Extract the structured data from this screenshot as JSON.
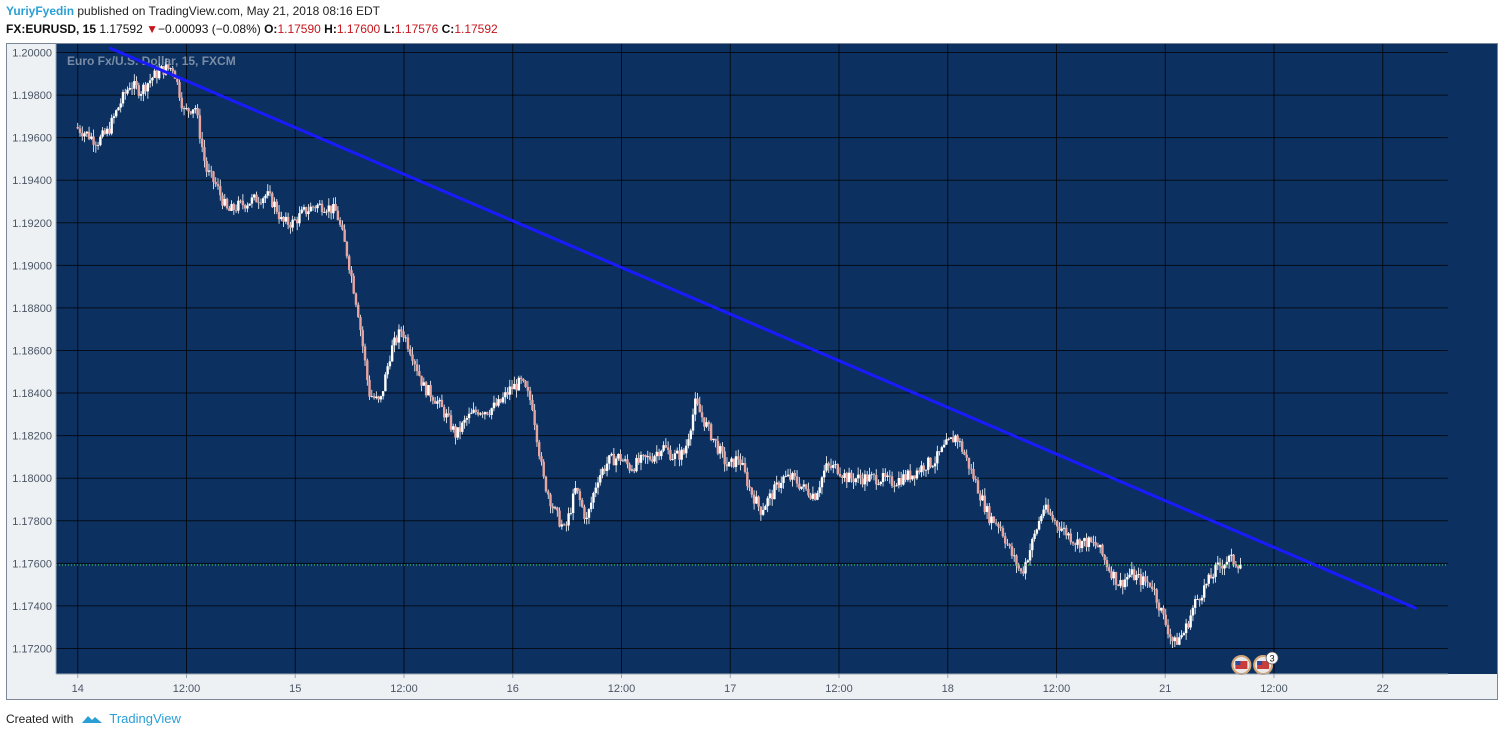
{
  "header": {
    "author": "YuriyFyedin",
    "published_text": "published on TradingView.com, May 21, 2018 08:16 EDT",
    "symbol": "FX:EURUSD, 15",
    "last": "1.17592",
    "down_arrow": "▼",
    "change": "−0.00093 (−0.08%)",
    "open_label": "O:",
    "open": "1.17590",
    "high_label": "H:",
    "high": "1.17600",
    "low_label": "L:",
    "low": "1.17576",
    "close_label": "C:",
    "close": "1.17592"
  },
  "footer": {
    "created_with": "Created with",
    "brand": "TradingView"
  },
  "colors": {
    "plot_bg": "#0c3160",
    "grid": "#000000",
    "trendline": "#1a1aff",
    "hline": "#44dd44",
    "candle_up": "#ffffff",
    "candle_down": "#e8a5a0",
    "wick": "#ffffff"
  },
  "chart_data": {
    "type": "candlestick",
    "title": "Euro Fx/U.S. Dollar, 15, FXCM",
    "y_ticks": [
      "1.20000",
      "1.19800",
      "1.19600",
      "1.19400",
      "1.19200",
      "1.19000",
      "1.18800",
      "1.18600",
      "1.18400",
      "1.18200",
      "1.18000",
      "1.17800",
      "1.17600",
      "1.17400",
      "1.17200"
    ],
    "y_tick_values": [
      1.2,
      1.198,
      1.196,
      1.194,
      1.192,
      1.19,
      1.188,
      1.186,
      1.184,
      1.182,
      1.18,
      1.178,
      1.176,
      1.174,
      1.172
    ],
    "ylim": [
      1.1708,
      1.2004
    ],
    "x_ticks": [
      "14",
      "12:00",
      "15",
      "12:00",
      "16",
      "12:00",
      "17",
      "12:00",
      "18",
      "12:00",
      "21",
      "12:00",
      "22"
    ],
    "x_tick_days": [
      0,
      0.5,
      1,
      1.5,
      2,
      2.5,
      3,
      3.5,
      4,
      4.5,
      5,
      5.5,
      6
    ],
    "xlim": [
      -0.1,
      6.3
    ],
    "price_path_days": [
      0,
      0.05,
      0.1,
      0.15,
      0.2,
      0.25,
      0.3,
      0.35,
      0.4,
      0.45,
      0.5,
      0.55,
      0.6,
      0.65,
      0.7,
      0.75,
      0.8,
      0.85,
      0.88,
      0.92,
      0.95,
      1.0,
      1.05,
      1.1,
      1.15,
      1.2,
      1.25,
      1.3,
      1.35,
      1.4,
      1.45,
      1.5,
      1.55,
      1.6,
      1.65,
      1.7,
      1.75,
      1.8,
      1.85,
      1.9,
      1.95,
      2.0,
      2.05,
      2.1,
      2.15,
      2.2,
      2.25,
      2.3,
      2.35,
      2.4,
      2.45,
      2.5,
      2.55,
      2.6,
      2.65,
      2.7,
      2.75,
      2.8,
      2.85,
      2.9,
      2.95,
      3.0,
      3.05,
      3.1,
      3.15,
      3.2,
      3.25,
      3.3,
      3.35,
      3.4,
      3.45,
      3.5,
      3.55,
      3.6,
      3.65,
      3.7,
      3.75,
      3.8,
      3.85,
      3.9,
      3.95,
      4.0,
      4.05,
      4.1,
      4.15,
      4.2,
      4.25,
      4.3,
      4.35,
      4.4,
      4.45,
      4.5,
      4.55,
      4.6,
      4.65,
      4.7,
      4.75,
      4.8,
      4.85,
      4.9,
      4.95,
      5.0,
      5.05,
      5.1,
      5.15,
      5.2,
      5.25,
      5.3,
      5.35
    ],
    "price_path": [
      1.1965,
      1.1962,
      1.1958,
      1.1963,
      1.1975,
      1.1985,
      1.1982,
      1.1988,
      1.1992,
      1.1993,
      1.1972,
      1.1975,
      1.1945,
      1.1937,
      1.1925,
      1.1928,
      1.193,
      1.1932,
      1.1933,
      1.1928,
      1.192,
      1.192,
      1.1925,
      1.1928,
      1.1928,
      1.1925,
      1.1905,
      1.1878,
      1.184,
      1.1835,
      1.186,
      1.187,
      1.1858,
      1.1843,
      1.1838,
      1.183,
      1.182,
      1.1828,
      1.1832,
      1.1832,
      1.1835,
      1.1842,
      1.1845,
      1.1835,
      1.18,
      1.1785,
      1.1775,
      1.1795,
      1.178,
      1.18,
      1.1808,
      1.181,
      1.1805,
      1.1808,
      1.181,
      1.1815,
      1.181,
      1.1812,
      1.1835,
      1.1825,
      1.1815,
      1.1805,
      1.181,
      1.1795,
      1.1785,
      1.1792,
      1.18,
      1.18,
      1.1795,
      1.1792,
      1.1805,
      1.1805,
      1.18,
      1.18,
      1.18,
      1.18,
      1.1798,
      1.18,
      1.1802,
      1.1806,
      1.1808,
      1.1815,
      1.182,
      1.1808,
      1.1795,
      1.1782,
      1.1778,
      1.1765,
      1.1755,
      1.177,
      1.1786,
      1.178,
      1.1775,
      1.177,
      1.177,
      1.1768,
      1.1758,
      1.175,
      1.1755,
      1.1752,
      1.175,
      1.1735,
      1.1722,
      1.1728,
      1.1742,
      1.175,
      1.1758,
      1.1762,
      1.176
    ],
    "trendline": {
      "from": [
        0.15,
        1.2002
      ],
      "to": [
        6.15,
        1.1739
      ]
    },
    "current_price_line": 1.17592,
    "event_markers": [
      {
        "day": 5.35,
        "badge": ""
      },
      {
        "day": 5.45,
        "badge": "3"
      }
    ]
  }
}
